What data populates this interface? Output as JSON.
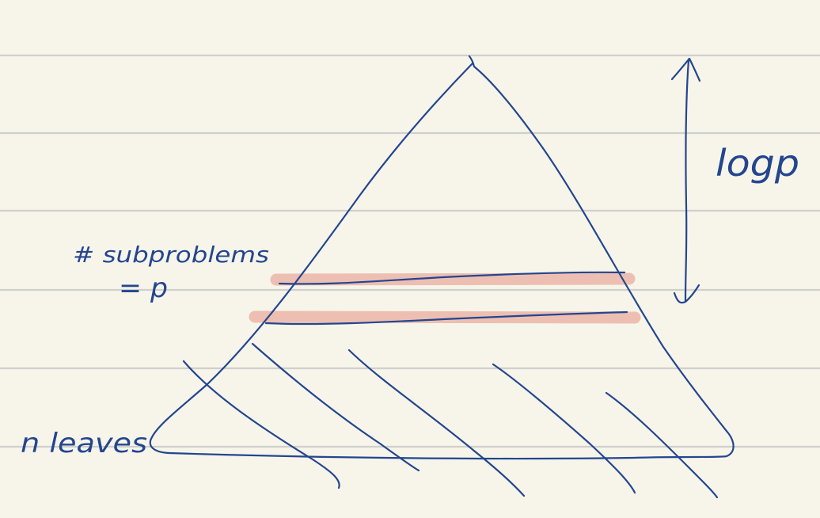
{
  "annotations": {
    "height_label": "logp",
    "subproblems_line1": "# subproblems",
    "subproblems_line2": "= p",
    "leaves_label": "n leaves"
  },
  "colors": {
    "paper": "#f7f5ea",
    "rule_lines": "#cfd0cc",
    "ink": "#24468f",
    "highlight": "#edbfb2"
  }
}
